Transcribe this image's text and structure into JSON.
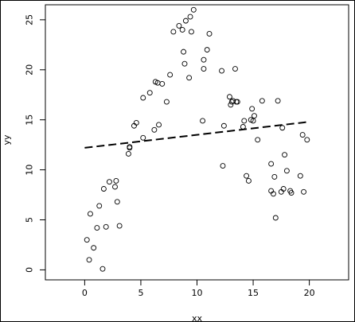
{
  "chart_data": {
    "type": "scatter",
    "title": "",
    "xlabel": "xx",
    "ylabel": "yy",
    "xlim": [
      -3.5,
      23.5
    ],
    "ylim": [
      -1,
      26.5
    ],
    "x_ticks": [
      0,
      5,
      10,
      15,
      20
    ],
    "y_ticks": [
      0,
      5,
      10,
      15,
      20,
      25
    ],
    "grid": false,
    "legend": "none",
    "colors": {
      "points": "#000000",
      "line": "#000000",
      "background": "#ffffff"
    },
    "series": [
      {
        "kind": "points",
        "marker": "open-circle",
        "x": [
          0.2,
          0.4,
          0.5,
          0.8,
          1.1,
          1.3,
          1.6,
          1.7,
          1.9,
          2.2,
          2.7,
          2.8,
          2.9,
          3.1,
          3.9,
          4.0,
          4.0,
          4.4,
          4.6,
          5.2,
          5.2,
          5.8,
          6.2,
          6.3,
          6.5,
          6.6,
          6.9,
          7.3,
          7.6,
          7.9,
          8.4,
          8.7,
          8.8,
          8.9,
          9.0,
          9.3,
          9.4,
          9.5,
          9.7,
          10.5,
          10.6,
          10.6,
          10.9,
          11.1,
          12.2,
          12.3,
          12.4,
          12.9,
          13.0,
          13.1,
          13.2,
          13.4,
          13.5,
          13.6,
          14.1,
          14.2,
          14.4,
          14.6,
          14.8,
          14.9,
          15.0,
          15.1,
          15.4,
          15.8,
          16.6,
          16.6,
          16.8,
          16.9,
          17.0,
          17.2,
          17.5,
          17.6,
          17.7,
          17.8,
          18.0,
          18.3,
          18.4,
          19.2,
          19.4,
          19.5,
          19.8
        ],
        "y": [
          3.0,
          1.0,
          5.6,
          2.2,
          4.2,
          6.4,
          0.1,
          8.1,
          4.3,
          8.8,
          8.3,
          8.9,
          6.8,
          4.4,
          11.6,
          12.3,
          12.2,
          14.4,
          14.7,
          13.2,
          17.2,
          17.7,
          14.0,
          18.8,
          18.7,
          14.5,
          18.6,
          16.8,
          19.5,
          23.8,
          24.4,
          24.0,
          21.8,
          20.6,
          24.9,
          19.2,
          25.3,
          23.8,
          26.0,
          14.9,
          21.0,
          20.1,
          22.0,
          23.6,
          19.9,
          10.4,
          14.4,
          17.3,
          16.5,
          16.8,
          16.9,
          20.1,
          16.8,
          16.8,
          14.3,
          14.9,
          9.4,
          8.9,
          15.0,
          16.1,
          14.9,
          15.4,
          13.0,
          16.9,
          10.6,
          7.9,
          7.6,
          9.3,
          5.2,
          16.9,
          7.8,
          14.2,
          8.1,
          11.5,
          9.9,
          7.9,
          7.7,
          9.4,
          13.5,
          7.8,
          13.0
        ]
      },
      {
        "kind": "line",
        "style": "dashed",
        "x": [
          0,
          20
        ],
        "y": [
          12.2,
          14.8
        ]
      }
    ]
  }
}
